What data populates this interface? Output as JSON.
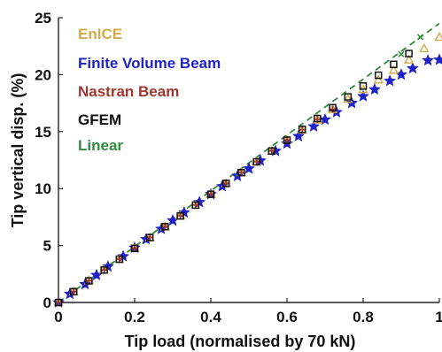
{
  "chart_data": {
    "type": "line",
    "title": "",
    "xlabel": "Tip load (normalised by 70 kN)",
    "ylabel": "Tip vertical disp. (%)",
    "xlim": [
      0,
      1
    ],
    "ylim": [
      0,
      25
    ],
    "xticks": [
      0,
      0.2,
      0.4,
      0.6,
      0.8,
      1
    ],
    "xtick_labels": [
      "0",
      "0.2",
      "0.4",
      "0.6",
      "0.8",
      "1"
    ],
    "yticks": [
      0,
      5,
      10,
      15,
      20,
      25
    ],
    "ytick_labels": [
      "0",
      "5",
      "10",
      "15",
      "20",
      "25"
    ],
    "grid": false,
    "legend_position": "top-left",
    "series": [
      {
        "name": "EnICE",
        "color": "#D4A94A",
        "marker": "triangle",
        "x": [
          0,
          0.04,
          0.08,
          0.12,
          0.16,
          0.2,
          0.24,
          0.28,
          0.32,
          0.36,
          0.4,
          0.44,
          0.48,
          0.52,
          0.56,
          0.6,
          0.64,
          0.68,
          0.72,
          0.76,
          0.8,
          0.84,
          0.88,
          0.92,
          0.96,
          1.0
        ],
        "y": [
          0,
          0.95,
          1.9,
          2.85,
          3.8,
          4.75,
          5.7,
          6.65,
          7.6,
          8.55,
          9.5,
          10.45,
          11.4,
          12.35,
          13.3,
          14.25,
          15.15,
          16.05,
          16.95,
          17.85,
          18.7,
          19.55,
          20.4,
          21.3,
          22.3,
          23.3
        ]
      },
      {
        "name": "Finite Volume Beam",
        "color": "#1F22C8",
        "marker": "star",
        "x": [
          0,
          0.03,
          0.07,
          0.1,
          0.13,
          0.17,
          0.2,
          0.23,
          0.27,
          0.3,
          0.33,
          0.37,
          0.4,
          0.43,
          0.47,
          0.5,
          0.53,
          0.57,
          0.6,
          0.63,
          0.67,
          0.7,
          0.73,
          0.77,
          0.8,
          0.83,
          0.87,
          0.9,
          0.93,
          0.97,
          1.0
        ],
        "y": [
          0,
          0.75,
          1.6,
          2.4,
          3.15,
          4.05,
          4.8,
          5.55,
          6.45,
          7.2,
          7.9,
          8.8,
          9.5,
          10.2,
          11.1,
          11.75,
          12.45,
          13.3,
          13.95,
          14.6,
          15.45,
          16.05,
          16.7,
          17.5,
          18.1,
          18.7,
          19.45,
          20.0,
          20.55,
          21.25,
          21.3
        ]
      },
      {
        "name": "Nastran Beam",
        "color": "#A3352F",
        "marker": "plus",
        "x": [
          0,
          0.04,
          0.08,
          0.12,
          0.16,
          0.2,
          0.24,
          0.28,
          0.32,
          0.36,
          0.4,
          0.44,
          0.48,
          0.52,
          0.56,
          0.6,
          0.64,
          0.68,
          0.72
        ],
        "y": [
          0,
          0.95,
          1.9,
          2.85,
          3.8,
          4.75,
          5.7,
          6.65,
          7.6,
          8.55,
          9.5,
          10.45,
          11.4,
          12.35,
          13.3,
          14.25,
          15.15,
          16.05,
          16.95
        ]
      },
      {
        "name": "GFEM",
        "color": "#111111",
        "marker": "square",
        "x": [
          0,
          0.04,
          0.08,
          0.12,
          0.16,
          0.2,
          0.24,
          0.28,
          0.32,
          0.36,
          0.4,
          0.44,
          0.48,
          0.52,
          0.56,
          0.6,
          0.64,
          0.68,
          0.72,
          0.76,
          0.8,
          0.84,
          0.88,
          0.92
        ],
        "y": [
          0,
          0.95,
          1.9,
          2.85,
          3.8,
          4.75,
          5.7,
          6.65,
          7.6,
          8.55,
          9.5,
          10.45,
          11.4,
          12.35,
          13.3,
          14.25,
          15.2,
          16.15,
          17.1,
          18.05,
          19.0,
          19.95,
          20.9,
          21.85
        ]
      },
      {
        "name": "Linear",
        "color": "#2E8B3A",
        "marker": "dashed-line",
        "x": [
          0,
          1.0
        ],
        "y": [
          0,
          24.5
        ],
        "x_markers": [
          0.9,
          0.95
        ],
        "y_markers": [
          21.8,
          23.3
        ]
      }
    ]
  }
}
